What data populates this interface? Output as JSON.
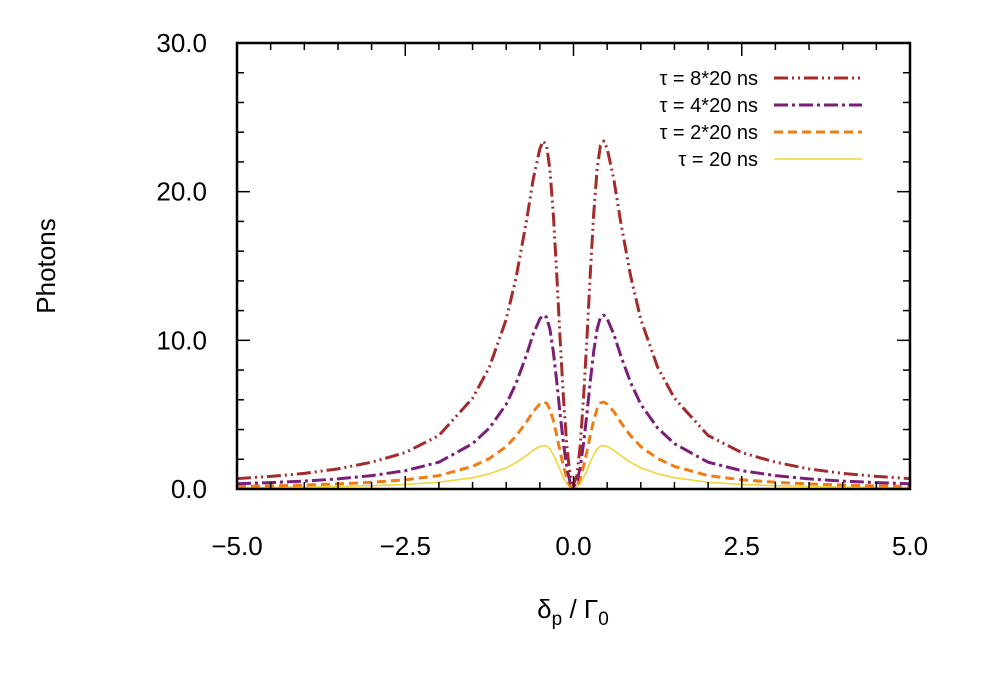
{
  "chart_data": {
    "type": "line",
    "title": "",
    "ylabel": "Photons",
    "xlabel": {
      "main": "δ",
      "main_sub": "p",
      "sep": " / ",
      "denom": "Γ",
      "denom_sub": "0"
    },
    "xlim": [
      -5.0,
      5.0
    ],
    "ylim": [
      0.0,
      30.0
    ],
    "x_ticks": [
      "−5.0",
      "−2.5",
      "0.0",
      "2.5",
      "5.0"
    ],
    "x_tick_values": [
      -5.0,
      -2.5,
      0.0,
      2.5,
      5.0
    ],
    "y_ticks": [
      "0.0",
      "10.0",
      "20.0",
      "30.0"
    ],
    "y_tick_values": [
      0,
      10,
      20,
      30
    ],
    "legend_position": "top-right",
    "grid": false,
    "series": [
      {
        "name": "τ = 8*20 ns",
        "color": "#a52a2a",
        "dash": "dash-dot-dot",
        "x": [
          -5.0,
          -4.5,
          -4.0,
          -3.5,
          -3.0,
          -2.5,
          -2.0,
          -1.5,
          -1.25,
          -1.0,
          -0.85,
          -0.7,
          -0.6,
          -0.5,
          -0.45,
          -0.4,
          -0.35,
          -0.3,
          -0.25,
          -0.2,
          -0.15,
          -0.1,
          -0.05,
          0.0,
          0.05,
          0.1,
          0.15,
          0.2,
          0.25,
          0.3,
          0.35,
          0.4,
          0.45,
          0.5,
          0.6,
          0.7,
          0.85,
          1.0,
          1.25,
          1.5,
          2.0,
          2.5,
          3.0,
          3.5,
          4.0,
          4.5,
          5.0
        ],
        "y": [
          0.7,
          0.85,
          1.05,
          1.35,
          1.8,
          2.45,
          3.6,
          6.1,
          8.2,
          11.4,
          14.3,
          18.0,
          20.8,
          22.9,
          23.4,
          23.1,
          21.5,
          18.5,
          14.5,
          10.2,
          6.2,
          2.9,
          0.9,
          0.3,
          0.9,
          2.9,
          6.2,
          10.2,
          14.5,
          18.5,
          21.5,
          23.1,
          23.4,
          22.9,
          20.8,
          18.0,
          14.3,
          11.4,
          8.2,
          6.1,
          3.6,
          2.45,
          1.8,
          1.35,
          1.05,
          0.85,
          0.7
        ]
      },
      {
        "name": "τ = 4*20 ns",
        "color": "#7b1e7a",
        "dash": "dash-dot",
        "x": [
          -5.0,
          -4.5,
          -4.0,
          -3.5,
          -3.0,
          -2.5,
          -2.0,
          -1.5,
          -1.25,
          -1.0,
          -0.85,
          -0.7,
          -0.6,
          -0.5,
          -0.45,
          -0.4,
          -0.35,
          -0.3,
          -0.25,
          -0.2,
          -0.15,
          -0.1,
          -0.05,
          0.0,
          0.05,
          0.1,
          0.15,
          0.2,
          0.25,
          0.3,
          0.35,
          0.4,
          0.45,
          0.5,
          0.6,
          0.7,
          0.85,
          1.0,
          1.25,
          1.5,
          2.0,
          2.5,
          3.0,
          3.5,
          4.0,
          4.5,
          5.0
        ],
        "y": [
          0.35,
          0.43,
          0.53,
          0.68,
          0.9,
          1.23,
          1.8,
          3.05,
          4.1,
          5.7,
          7.15,
          9.0,
          10.4,
          11.45,
          11.7,
          11.55,
          10.75,
          9.25,
          7.25,
          5.1,
          3.1,
          1.45,
          0.45,
          0.15,
          0.45,
          1.45,
          3.1,
          5.1,
          7.25,
          9.25,
          10.75,
          11.55,
          11.7,
          11.45,
          10.4,
          9.0,
          7.15,
          5.7,
          4.1,
          3.05,
          1.8,
          1.23,
          0.9,
          0.68,
          0.53,
          0.43,
          0.35
        ]
      },
      {
        "name": "τ = 2*20 ns",
        "color": "#f07d14",
        "dash": "dash",
        "x": [
          -5.0,
          -4.5,
          -4.0,
          -3.5,
          -3.0,
          -2.5,
          -2.0,
          -1.5,
          -1.25,
          -1.0,
          -0.85,
          -0.7,
          -0.6,
          -0.5,
          -0.45,
          -0.4,
          -0.35,
          -0.3,
          -0.25,
          -0.2,
          -0.15,
          -0.1,
          -0.05,
          0.0,
          0.05,
          0.1,
          0.15,
          0.2,
          0.25,
          0.3,
          0.35,
          0.4,
          0.45,
          0.5,
          0.6,
          0.7,
          0.85,
          1.0,
          1.25,
          1.5,
          2.0,
          2.5,
          3.0,
          3.5,
          4.0,
          4.5,
          5.0
        ],
        "y": [
          0.18,
          0.21,
          0.26,
          0.34,
          0.45,
          0.62,
          0.9,
          1.52,
          2.05,
          2.85,
          3.58,
          4.5,
          5.2,
          5.72,
          5.85,
          5.78,
          5.38,
          4.62,
          3.62,
          2.55,
          1.55,
          0.72,
          0.22,
          0.08,
          0.22,
          0.72,
          1.55,
          2.55,
          3.62,
          4.62,
          5.38,
          5.78,
          5.85,
          5.72,
          5.2,
          4.5,
          3.58,
          2.85,
          2.05,
          1.52,
          0.9,
          0.62,
          0.45,
          0.34,
          0.26,
          0.21,
          0.18
        ]
      },
      {
        "name": "τ = 20 ns",
        "color": "#f3d33a",
        "dash": "solid",
        "x": [
          -5.0,
          -4.5,
          -4.0,
          -3.5,
          -3.0,
          -2.5,
          -2.0,
          -1.5,
          -1.25,
          -1.0,
          -0.85,
          -0.7,
          -0.6,
          -0.5,
          -0.45,
          -0.4,
          -0.35,
          -0.3,
          -0.25,
          -0.2,
          -0.15,
          -0.1,
          -0.05,
          0.0,
          0.05,
          0.1,
          0.15,
          0.2,
          0.25,
          0.3,
          0.35,
          0.4,
          0.45,
          0.5,
          0.6,
          0.7,
          0.85,
          1.0,
          1.25,
          1.5,
          2.0,
          2.5,
          3.0,
          3.5,
          4.0,
          4.5,
          5.0
        ],
        "y": [
          0.09,
          0.11,
          0.13,
          0.17,
          0.22,
          0.31,
          0.45,
          0.76,
          1.02,
          1.42,
          1.79,
          2.25,
          2.6,
          2.86,
          2.92,
          2.89,
          2.69,
          2.31,
          1.81,
          1.27,
          0.77,
          0.36,
          0.11,
          0.04,
          0.11,
          0.36,
          0.77,
          1.27,
          1.81,
          2.31,
          2.69,
          2.89,
          2.92,
          2.86,
          2.6,
          2.25,
          1.79,
          1.42,
          1.02,
          0.76,
          0.45,
          0.31,
          0.22,
          0.17,
          0.13,
          0.11,
          0.09
        ]
      }
    ]
  }
}
